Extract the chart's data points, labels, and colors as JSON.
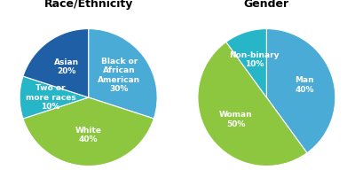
{
  "race_title": "Race/Ethnicity",
  "gender_title": "Gender",
  "race_labels": [
    "Black or\nAfrican\nAmerican\n30%",
    "White\n40%",
    "Two or\nmore races\n10%",
    "Asian\n20%"
  ],
  "race_sizes": [
    30,
    40,
    10,
    20
  ],
  "race_colors": [
    "#4aacd6",
    "#8dc63f",
    "#27b5c8",
    "#1e5fa5"
  ],
  "race_startangle": 90,
  "gender_labels": [
    "Man\n40%",
    "Woman\n50%",
    "Non-binary\n10%"
  ],
  "gender_sizes": [
    40,
    50,
    10
  ],
  "gender_colors": [
    "#4aacd6",
    "#8dc63f",
    "#27b5c8"
  ],
  "gender_startangle": 90,
  "background_color": "#ffffff",
  "title_fontsize": 9,
  "label_fontsize": 6.5
}
